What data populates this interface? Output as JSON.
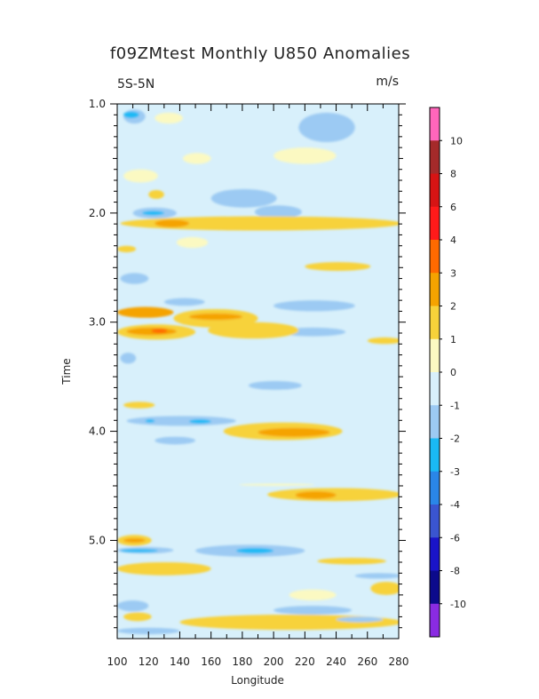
{
  "chart_data": {
    "type": "heatmap",
    "title": "f09ZMtest Monthly U850 Anomalies",
    "subtitle_left": "5S-5N",
    "subtitle_right": "m/s",
    "xlabel": "Longitude",
    "ylabel": "Time",
    "xlim": [
      100,
      280
    ],
    "ylim": [
      1.0,
      5.9
    ],
    "y_inverted": true,
    "x_ticks": [
      "100",
      "120",
      "140",
      "160",
      "180",
      "200",
      "220",
      "240",
      "260",
      "280"
    ],
    "y_ticks": [
      "1.0",
      "2.0",
      "3.0",
      "4.0",
      "5.0"
    ],
    "background_value_range": [
      -1,
      0
    ],
    "colorbar": {
      "labels": [
        "10",
        "8",
        "6",
        "4",
        "3",
        "2",
        "1",
        "0",
        "-1",
        "-2",
        "-3",
        "-4",
        "-6",
        "-8",
        "-10"
      ],
      "colors": [
        "#ff66bb",
        "#a52a2a",
        "#d71414",
        "#ff1a1a",
        "#ff6a00",
        "#f5a300",
        "#f7d23a",
        "#fbf9c2",
        "#d8f0fb",
        "#9ccaf3",
        "#1ab9f5",
        "#2a86e8",
        "#3a55d0",
        "#1a14c8",
        "#0c0a8c",
        "#8a2be2"
      ]
    },
    "features": [
      {
        "lon": [
          124,
          142
        ],
        "time": [
          1.08,
          1.18
        ],
        "value": 0
      },
      {
        "lon": [
          196,
          222
        ],
        "time": [
          1.12,
          1.2
        ],
        "value": -1
      },
      {
        "lon": [
          216,
          252
        ],
        "time": [
          1.08,
          1.35
        ],
        "value": -1.5
      },
      {
        "lon": [
          104,
          118
        ],
        "time": [
          1.05,
          1.18
        ],
        "value": -1.5
      },
      {
        "lon": [
          104,
          114
        ],
        "time": [
          1.07,
          1.13
        ],
        "value": -2.5
      },
      {
        "lon": [
          142,
          160
        ],
        "time": [
          1.45,
          1.55
        ],
        "value": 0.5
      },
      {
        "lon": [
          200,
          240
        ],
        "time": [
          1.4,
          1.55
        ],
        "value": 0.5
      },
      {
        "lon": [
          104,
          126
        ],
        "time": [
          1.6,
          1.72
        ],
        "value": 0.5
      },
      {
        "lon": [
          120,
          130
        ],
        "time": [
          1.79,
          1.87
        ],
        "value": 1.5
      },
      {
        "lon": [
          160,
          202
        ],
        "time": [
          1.78,
          1.95
        ],
        "value": -1.5
      },
      {
        "lon": [
          110,
          138
        ],
        "time": [
          1.95,
          2.05
        ],
        "value": -1.5
      },
      {
        "lon": [
          116,
          130
        ],
        "time": [
          1.98,
          2.02
        ],
        "value": -2.5
      },
      {
        "lon": [
          188,
          218
        ],
        "time": [
          1.93,
          2.05
        ],
        "value": -1.5
      },
      {
        "lon": [
          102,
          282
        ],
        "time": [
          2.03,
          2.16
        ],
        "value": 1.5
      },
      {
        "lon": [
          124,
          146
        ],
        "time": [
          2.06,
          2.13
        ],
        "value": 2.5
      },
      {
        "lon": [
          138,
          158
        ],
        "time": [
          2.22,
          2.32
        ],
        "value": 0.5
      },
      {
        "lon": [
          100,
          112
        ],
        "time": [
          2.3,
          2.36
        ],
        "value": 1.5
      },
      {
        "lon": [
          220,
          262
        ],
        "time": [
          2.45,
          2.53
        ],
        "value": 1.5
      },
      {
        "lon": [
          102,
          120
        ],
        "time": [
          2.55,
          2.65
        ],
        "value": -1.5
      },
      {
        "lon": [
          130,
          156
        ],
        "time": [
          2.78,
          2.85
        ],
        "value": -1.5
      },
      {
        "lon": [
          200,
          252
        ],
        "time": [
          2.8,
          2.9
        ],
        "value": -1.5
      },
      {
        "lon": [
          100,
          136
        ],
        "time": [
          2.86,
          2.96
        ],
        "value": 2.5
      },
      {
        "lon": [
          136,
          190
        ],
        "time": [
          2.88,
          3.05
        ],
        "value": 1.5
      },
      {
        "lon": [
          146,
          180
        ],
        "time": [
          2.92,
          2.98
        ],
        "value": 2.5
      },
      {
        "lon": [
          100,
          150
        ],
        "time": [
          3.02,
          3.16
        ],
        "value": 1.5
      },
      {
        "lon": [
          106,
          138
        ],
        "time": [
          3.05,
          3.12
        ],
        "value": 2.5
      },
      {
        "lon": [
          122,
          132
        ],
        "time": [
          3.06,
          3.1
        ],
        "value": 3.5
      },
      {
        "lon": [
          204,
          246
        ],
        "time": [
          3.05,
          3.13
        ],
        "value": -1.5
      },
      {
        "lon": [
          158,
          216
        ],
        "time": [
          3.0,
          3.15
        ],
        "value": 1.0
      },
      {
        "lon": [
          260,
          282
        ],
        "time": [
          3.14,
          3.2
        ],
        "value": 1.5
      },
      {
        "lon": [
          102,
          112
        ],
        "time": [
          3.28,
          3.38
        ],
        "value": -1.5
      },
      {
        "lon": [
          184,
          218
        ],
        "time": [
          3.54,
          3.62
        ],
        "value": -1.5
      },
      {
        "lon": [
          104,
          124
        ],
        "time": [
          3.73,
          3.79
        ],
        "value": 1.5
      },
      {
        "lon": [
          106,
          176
        ],
        "time": [
          3.86,
          3.95
        ],
        "value": -1.5
      },
      {
        "lon": [
          118,
          124
        ],
        "time": [
          3.89,
          3.92
        ],
        "value": -2.5
      },
      {
        "lon": [
          146,
          160
        ],
        "time": [
          3.89,
          3.93
        ],
        "value": -2.5
      },
      {
        "lon": [
          168,
          244
        ],
        "time": [
          3.92,
          4.08
        ],
        "value": 1.5
      },
      {
        "lon": [
          190,
          236
        ],
        "time": [
          3.97,
          4.05
        ],
        "value": 2.5
      },
      {
        "lon": [
          124,
          150
        ],
        "time": [
          4.05,
          4.12
        ],
        "value": -1.5
      },
      {
        "lon": [
          178,
          226
        ],
        "time": [
          4.48,
          4.5
        ],
        "value": 0.5
      },
      {
        "lon": [
          196,
          282
        ],
        "time": [
          4.52,
          4.64
        ],
        "value": 1.5
      },
      {
        "lon": [
          214,
          240
        ],
        "time": [
          4.55,
          4.62
        ],
        "value": 2.5
      },
      {
        "lon": [
          100,
          122
        ],
        "time": [
          4.95,
          5.05
        ],
        "value": 1.5
      },
      {
        "lon": [
          104,
          118
        ],
        "time": [
          4.98,
          5.02
        ],
        "value": 2.5
      },
      {
        "lon": [
          100,
          136
        ],
        "time": [
          5.06,
          5.12
        ],
        "value": -1.5
      },
      {
        "lon": [
          102,
          126
        ],
        "time": [
          5.08,
          5.11
        ],
        "value": -2.5
      },
      {
        "lon": [
          150,
          220
        ],
        "time": [
          5.04,
          5.15
        ],
        "value": -1.5
      },
      {
        "lon": [
          176,
          200
        ],
        "time": [
          5.07,
          5.12
        ],
        "value": -2.5
      },
      {
        "lon": [
          100,
          160
        ],
        "time": [
          5.2,
          5.32
        ],
        "value": 1.5
      },
      {
        "lon": [
          228,
          272
        ],
        "time": [
          5.16,
          5.22
        ],
        "value": 1.5
      },
      {
        "lon": [
          252,
          282
        ],
        "time": [
          5.3,
          5.35
        ],
        "value": -1.5
      },
      {
        "lon": [
          262,
          282
        ],
        "time": [
          5.38,
          5.5
        ],
        "value": 1.5
      },
      {
        "lon": [
          210,
          240
        ],
        "time": [
          5.45,
          5.55
        ],
        "value": 0.5
      },
      {
        "lon": [
          100,
          120
        ],
        "time": [
          5.55,
          5.65
        ],
        "value": -1.5
      },
      {
        "lon": [
          200,
          250
        ],
        "time": [
          5.6,
          5.68
        ],
        "value": -1.5
      },
      {
        "lon": [
          140,
          282
        ],
        "time": [
          5.68,
          5.82
        ],
        "value": 1.5
      },
      {
        "lon": [
          104,
          122
        ],
        "time": [
          5.66,
          5.74
        ],
        "value": 1.5
      },
      {
        "lon": [
          240,
          270
        ],
        "time": [
          5.7,
          5.75
        ],
        "value": -1.5
      },
      {
        "lon": [
          100,
          140
        ],
        "time": [
          5.8,
          5.86
        ],
        "value": -1.5
      }
    ]
  }
}
